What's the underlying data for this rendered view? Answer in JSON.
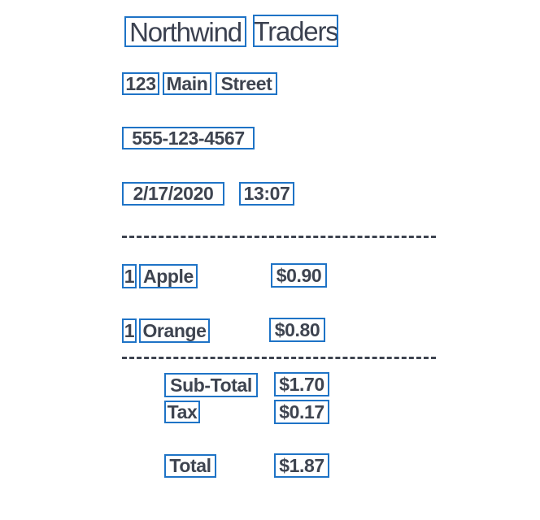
{
  "colors": {
    "box": "#1e73c6",
    "text": "#3e4450"
  },
  "store": {
    "name_word1": "Northwind",
    "name_word2": "Traders",
    "address_num": "123",
    "address_word1": "Main",
    "address_word2": "Street",
    "phone": "555-123-4567",
    "date": "2/17/2020",
    "time": "13:07"
  },
  "items": [
    {
      "qty": "1",
      "name": "Apple",
      "price": "$0.90"
    },
    {
      "qty": "1",
      "name": "Orange",
      "price": "$0.80"
    }
  ],
  "totals": {
    "subtotal_label": "Sub-Total",
    "subtotal_value": "$1.70",
    "tax_label": "Tax",
    "tax_value": "$0.17",
    "total_label": "Total",
    "total_value": "$1.87"
  }
}
